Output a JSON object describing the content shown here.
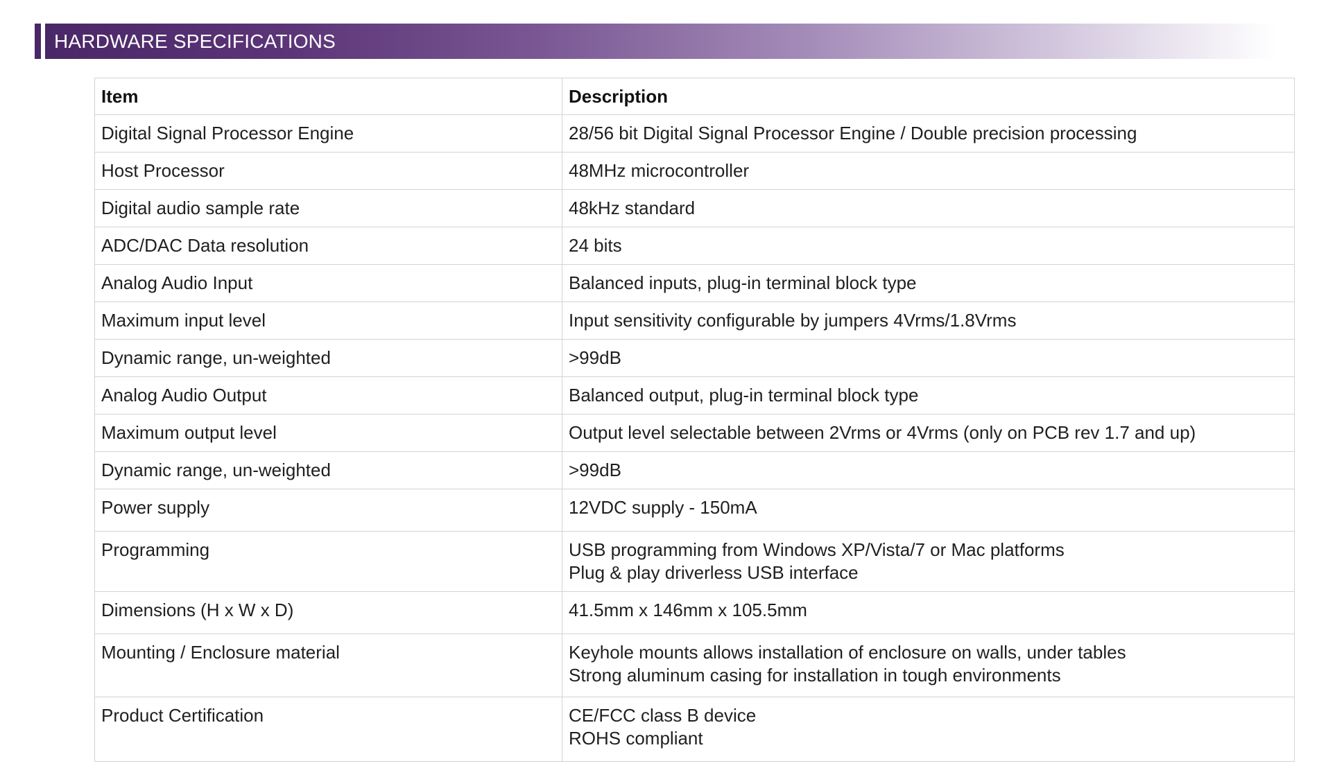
{
  "header": {
    "title": "HARDWARE SPECIFICATIONS",
    "accent_color": "#4a2767"
  },
  "table": {
    "columns": [
      "Item",
      "Description"
    ],
    "rows": [
      {
        "item": "Digital Signal Processor Engine",
        "description": [
          "28/56 bit Digital Signal Processor Engine / Double precision processing"
        ]
      },
      {
        "item": "Host Processor",
        "description": [
          "48MHz microcontroller"
        ]
      },
      {
        "item": "Digital audio sample rate",
        "description": [
          "48kHz  standard"
        ]
      },
      {
        "item": "ADC/DAC Data resolution",
        "description": [
          "24 bits"
        ]
      },
      {
        "item": "Analog Audio Input",
        "description": [
          "Balanced inputs, plug-in terminal block type"
        ]
      },
      {
        "item": "Maximum input level",
        "description": [
          "Input sensitivity configurable by jumpers 4Vrms/1.8Vrms"
        ]
      },
      {
        "item": "Dynamic range, un-weighted",
        "description": [
          ">99dB"
        ]
      },
      {
        "item": "Analog Audio Output",
        "description": [
          "Balanced output, plug-in terminal block type"
        ]
      },
      {
        "item": "Maximum output level",
        "description": [
          "Output level selectable between 2Vrms or 4Vrms (only on PCB rev 1.7 and up)"
        ]
      },
      {
        "item": "Dynamic range, un-weighted",
        "description": [
          ">99dB"
        ]
      },
      {
        "item": "Power supply",
        "description": [
          "12VDC supply - 150mA"
        ]
      },
      {
        "item": "Programming",
        "description": [
          "USB programming from Windows XP/Vista/7 or Mac platforms",
          "Plug & play driverless USB interface"
        ]
      },
      {
        "item": "Dimensions (H  x W x D)",
        "description": [
          "41.5mm x 146mm x 105.5mm"
        ]
      },
      {
        "item": "Mounting / Enclosure material",
        "description": [
          "Keyhole mounts allows installation of enclosure on walls, under tables",
          "Strong aluminum casing for installation in tough environments"
        ]
      },
      {
        "item": "Product Certification",
        "description": [
          "CE/FCC class B device",
          "ROHS compliant"
        ]
      }
    ]
  }
}
